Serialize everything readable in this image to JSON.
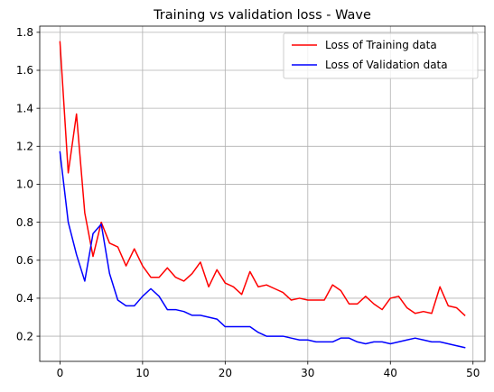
{
  "chart_data": {
    "type": "line",
    "title": "Training vs validation loss - Wave",
    "xlabel": "",
    "ylabel": "",
    "xlim": [
      -2.45,
      51.45
    ],
    "ylim": [
      0.0675,
      1.8325
    ],
    "xticks": [
      0,
      10,
      20,
      30,
      40,
      50
    ],
    "yticks": [
      0.2,
      0.4,
      0.6,
      0.8,
      1.0,
      1.2,
      1.4,
      1.6,
      1.8
    ],
    "xtick_labels": [
      "0",
      "10",
      "20",
      "30",
      "40",
      "50"
    ],
    "ytick_labels": [
      "0.2",
      "0.4",
      "0.6",
      "0.8",
      "1.0",
      "1.2",
      "1.4",
      "1.6",
      "1.8"
    ],
    "grid": true,
    "legend_position": "top-right",
    "x": [
      0,
      1,
      2,
      3,
      4,
      5,
      6,
      7,
      8,
      9,
      10,
      11,
      12,
      13,
      14,
      15,
      16,
      17,
      18,
      19,
      20,
      21,
      22,
      23,
      24,
      25,
      26,
      27,
      28,
      29,
      30,
      31,
      32,
      33,
      34,
      35,
      36,
      37,
      38,
      39,
      40,
      41,
      42,
      43,
      44,
      45,
      46,
      47,
      48,
      49
    ],
    "series": [
      {
        "name": "Loss of Training data",
        "color": "#ff0000",
        "values": [
          1.75,
          1.06,
          1.37,
          0.85,
          0.62,
          0.8,
          0.69,
          0.67,
          0.57,
          0.66,
          0.57,
          0.51,
          0.51,
          0.56,
          0.51,
          0.49,
          0.53,
          0.59,
          0.46,
          0.55,
          0.48,
          0.46,
          0.42,
          0.54,
          0.46,
          0.47,
          0.45,
          0.43,
          0.39,
          0.4,
          0.39,
          0.39,
          0.39,
          0.47,
          0.44,
          0.37,
          0.37,
          0.41,
          0.37,
          0.34,
          0.4,
          0.41,
          0.35,
          0.32,
          0.33,
          0.32,
          0.46,
          0.36,
          0.35,
          0.31
        ]
      },
      {
        "name": "Loss of Validation data",
        "color": "#0000ff",
        "values": [
          1.17,
          0.8,
          0.63,
          0.49,
          0.74,
          0.79,
          0.53,
          0.39,
          0.36,
          0.36,
          0.41,
          0.45,
          0.41,
          0.34,
          0.34,
          0.33,
          0.31,
          0.31,
          0.3,
          0.29,
          0.25,
          0.25,
          0.25,
          0.25,
          0.22,
          0.2,
          0.2,
          0.2,
          0.19,
          0.18,
          0.18,
          0.17,
          0.17,
          0.17,
          0.19,
          0.19,
          0.17,
          0.16,
          0.17,
          0.17,
          0.16,
          0.17,
          0.18,
          0.19,
          0.18,
          0.17,
          0.17,
          0.16,
          0.15,
          0.14
        ]
      }
    ]
  }
}
